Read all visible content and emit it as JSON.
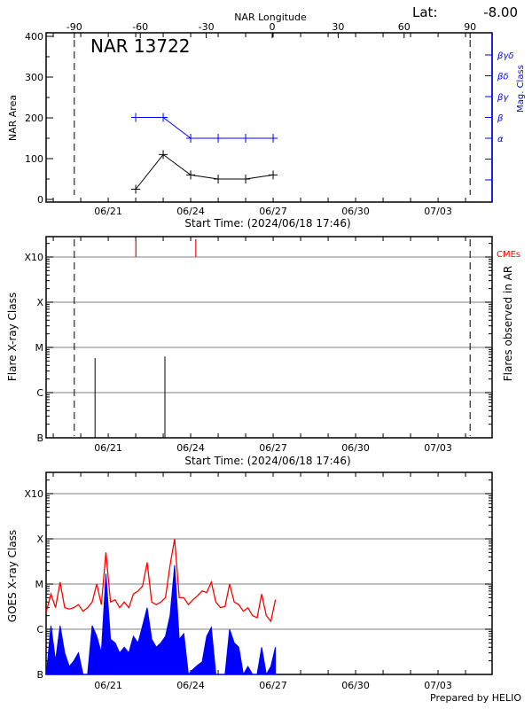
{
  "chart_data": [
    {
      "type": "line",
      "title": "NAR 13722",
      "top_axis_label": "NAR Longitude",
      "lat_label": "Lat:",
      "lat_value": "-8.00",
      "xlabel": "Start Time: (2024/06/18 17:46)",
      "ylabel": "NAR Area",
      "y2label": "Mag. Class",
      "ylim": [
        0,
        400
      ],
      "yticks": [
        "0",
        "100",
        "200",
        "300",
        "400"
      ],
      "xticks": [
        "06/21",
        "06/24",
        "06/27",
        "06/30",
        "07/03"
      ],
      "longitude_ticks": [
        "-90",
        "-60",
        "-30",
        "0",
        "30",
        "60",
        "90"
      ],
      "limb_lines_longitude": [
        -90,
        90
      ],
      "mag_classes": [
        "α",
        "β",
        "βγ",
        "βδ",
        "βγδ"
      ],
      "x": [
        "2024-06-22T00:00",
        "2024-06-23T00:00",
        "2024-06-24T00:00",
        "2024-06-25T00:00",
        "2024-06-26T00:00",
        "2024-06-27T00:00"
      ],
      "series": [
        {
          "values": [
            25,
            110,
            60,
            50,
            50,
            60
          ],
          "color": "#000000"
        },
        {
          "mag_class": [
            "β",
            "β",
            "α",
            "α",
            "α",
            "α"
          ],
          "color": "#0000ff"
        }
      ]
    },
    {
      "type": "bar",
      "xlabel": "Start Time: (2024/06/18 17:46)",
      "ylabel": "Flare X-ray Class",
      "y2label": "Flares observed in AR",
      "cme_label": "CMEs",
      "cme_color": "#ff0000",
      "yscale": "log",
      "yticks": [
        "B",
        "C",
        "M",
        "X",
        "X10"
      ],
      "xticks": [
        "06/21",
        "06/24",
        "06/27",
        "06/30",
        "07/03"
      ],
      "flares": [
        {
          "time": "2024-06-20T12:30",
          "flux": 5.8e-06
        },
        {
          "time": "2024-06-23T01:30",
          "flux": 6.3e-06
        }
      ],
      "cmes": [
        "2024-06-22T00:10",
        "2024-06-24T04:30"
      ]
    },
    {
      "type": "line",
      "ylabel": "GOES X-ray Class",
      "yscale": "log",
      "yticks": [
        "B",
        "C",
        "M",
        "X",
        "X10"
      ],
      "xticks": [
        "06/21",
        "06/24",
        "06/27",
        "06/30",
        "07/03"
      ],
      "grid": true,
      "series_colors": {
        "long": "#ff0000",
        "short": "#0000ff"
      },
      "columns": [
        "time",
        "long",
        "short"
      ],
      "rows": [
        [
          "2024-06-18T18:00",
          2.5e-06,
          5e-08
        ],
        [
          "2024-06-18T22:00",
          6e-06,
          1.2e-06
        ],
        [
          "2024-06-19T02:00",
          3e-06,
          2e-07
        ],
        [
          "2024-06-19T06:00",
          1.1e-05,
          1.2e-06
        ],
        [
          "2024-06-19T10:00",
          3e-06,
          3e-07
        ],
        [
          "2024-06-19T14:00",
          2.8e-06,
          1.5e-07
        ],
        [
          "2024-06-19T18:00",
          3e-06,
          2e-07
        ],
        [
          "2024-06-19T22:00",
          3.5e-06,
          3e-07
        ],
        [
          "2024-06-20T02:00",
          2.5e-06,
          5e-08
        ],
        [
          "2024-06-20T06:00",
          3e-06,
          5e-08
        ],
        [
          "2024-06-20T10:00",
          4e-06,
          1.2e-06
        ],
        [
          "2024-06-20T14:00",
          1e-05,
          7e-07
        ],
        [
          "2024-06-20T18:00",
          3.5e-06,
          3e-07
        ],
        [
          "2024-06-20T22:00",
          5e-05,
          1.7e-05
        ],
        [
          "2024-06-21T02:00",
          4e-06,
          6e-07
        ],
        [
          "2024-06-21T06:00",
          4.5e-06,
          5e-07
        ],
        [
          "2024-06-21T10:00",
          3e-06,
          3e-07
        ],
        [
          "2024-06-21T14:00",
          4e-06,
          4e-07
        ],
        [
          "2024-06-21T18:00",
          3e-06,
          3e-07
        ],
        [
          "2024-06-21T22:00",
          6e-06,
          7e-07
        ],
        [
          "2024-06-22T02:00",
          7e-06,
          5e-07
        ],
        [
          "2024-06-22T06:00",
          9e-06,
          1.2e-06
        ],
        [
          "2024-06-22T10:00",
          3e-05,
          3e-06
        ],
        [
          "2024-06-22T14:00",
          4e-06,
          6e-07
        ],
        [
          "2024-06-22T18:00",
          3.5e-06,
          4e-07
        ],
        [
          "2024-06-22T22:00",
          4e-06,
          5e-07
        ],
        [
          "2024-06-23T02:00",
          5e-06,
          7e-07
        ],
        [
          "2024-06-23T06:00",
          2.6e-05,
          2e-06
        ],
        [
          "2024-06-23T10:00",
          0.0001,
          2.6e-05
        ],
        [
          "2024-06-23T14:00",
          5e-06,
          6e-07
        ],
        [
          "2024-06-23T18:00",
          5e-06,
          8e-07
        ],
        [
          "2024-06-23T22:00",
          3.5e-06,
          5e-08
        ],
        [
          "2024-06-24T02:00",
          4.5e-06,
          1.3e-07
        ],
        [
          "2024-06-24T06:00",
          5.5e-06,
          1.6e-07
        ],
        [
          "2024-06-24T10:00",
          7e-06,
          1.9e-07
        ],
        [
          "2024-06-24T14:00",
          6.5e-06,
          7e-07
        ],
        [
          "2024-06-24T18:00",
          1.1e-05,
          1.1e-06
        ],
        [
          "2024-06-24T22:00",
          4e-06,
          5e-08
        ],
        [
          "2024-06-25T02:00",
          3e-06,
          5e-08
        ],
        [
          "2024-06-25T06:00",
          3.2e-06,
          5e-08
        ],
        [
          "2024-06-25T10:00",
          1e-05,
          1e-06
        ],
        [
          "2024-06-25T14:00",
          4e-06,
          5e-07
        ],
        [
          "2024-06-25T18:00",
          3.5e-06,
          4e-07
        ],
        [
          "2024-06-25T22:00",
          2.5e-06,
          5e-08
        ],
        [
          "2024-06-26T02:00",
          3e-06,
          1.5e-07
        ],
        [
          "2024-06-26T06:00",
          2e-06,
          5e-08
        ],
        [
          "2024-06-26T10:00",
          1.8e-06,
          5e-08
        ],
        [
          "2024-06-26T14:00",
          6e-06,
          4e-07
        ],
        [
          "2024-06-26T18:00",
          2e-06,
          5e-08
        ],
        [
          "2024-06-26T22:00",
          1.5e-06,
          1.5e-07
        ],
        [
          "2024-06-27T02:00",
          4.5e-06,
          4e-07
        ]
      ]
    }
  ],
  "footer": {
    "credit": "Prepared by HELIO"
  }
}
